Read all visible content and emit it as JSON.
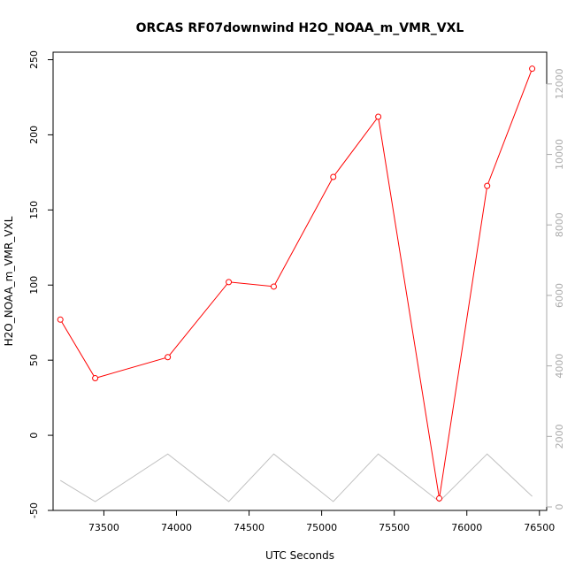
{
  "chart_data": {
    "type": "line",
    "title": "ORCAS RF07downwind H2O_NOAA_m_VMR_VXL",
    "xlabel": "UTC Seconds",
    "ylabel": "H2O_NOAA_m_VMR_VXL",
    "xlim": [
      73150,
      76550
    ],
    "ylim": [
      -50,
      255
    ],
    "y2lim": [
      -100,
      12900
    ],
    "x_ticks": [
      73500,
      74000,
      74500,
      75000,
      75500,
      76000,
      76500
    ],
    "y_ticks": [
      -50,
      0,
      50,
      100,
      150,
      200,
      250
    ],
    "y2_ticks": [
      0,
      2000,
      4000,
      6000,
      8000,
      10000,
      12000
    ],
    "series": [
      {
        "name": "H2O_NOAA_m_VMR_VXL",
        "axis": "left",
        "color": "#ff0000",
        "markers": true,
        "x": [
          73200,
          73440,
          73940,
          74360,
          74670,
          75080,
          75390,
          75810,
          76140,
          76450
        ],
        "y": [
          77,
          38,
          52,
          102,
          99,
          172,
          212,
          -42,
          166,
          244
        ]
      },
      {
        "name": "secondary",
        "axis": "right",
        "color": "#c0c0c0",
        "markers": false,
        "x": [
          73200,
          73440,
          73940,
          74360,
          74670,
          75080,
          75390,
          75810,
          76140,
          76450
        ],
        "y": [
          750,
          150,
          1500,
          150,
          1500,
          150,
          1500,
          150,
          1500,
          300
        ]
      }
    ]
  }
}
